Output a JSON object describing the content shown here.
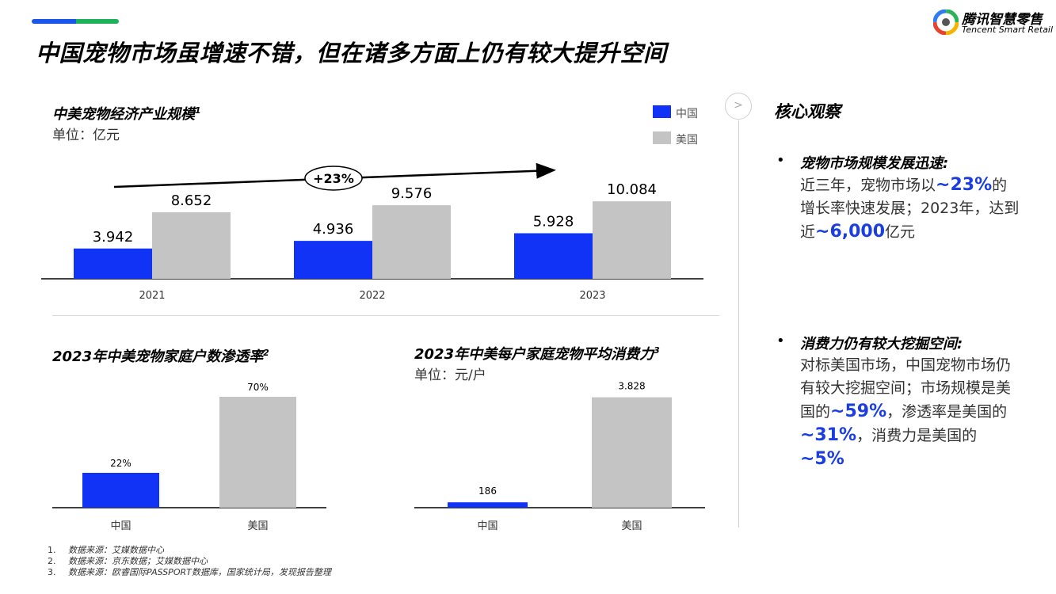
{
  "header": {
    "title": "中国宠物市场虽增速不错，但在诸多方面上仍有较大提升空间",
    "logo_cn": "腾讯智慧零售",
    "logo_en": "Tencent Smart Retail"
  },
  "colors": {
    "china": "#1133f5",
    "usa": "#c4c4c4",
    "highlight": "#1a3ee0"
  },
  "chart_data": [
    {
      "type": "bar",
      "title": "中美宠物经济产业规模",
      "title_sup": "1",
      "unit": "单位：亿元",
      "categories": [
        "2021",
        "2022",
        "2023"
      ],
      "series": [
        {
          "name": "中国",
          "values": [
            3.942,
            4.936,
            5.928
          ],
          "labels": [
            "3.942",
            "4.936",
            "5.928"
          ]
        },
        {
          "name": "美国",
          "values": [
            8.652,
            9.576,
            10.084
          ],
          "labels": [
            "8.652",
            "9.576",
            "10.084"
          ]
        }
      ],
      "annotation": "+23%",
      "legend": "top-right"
    },
    {
      "type": "bar",
      "title": "2023年中美宠物家庭户数渗透率",
      "title_sup": "2",
      "categories": [
        "中国",
        "美国"
      ],
      "values": [
        22,
        70
      ],
      "labels": [
        "22%",
        "70%"
      ]
    },
    {
      "type": "bar",
      "title": "2023年中美每户家庭宠物平均消费力",
      "title_sup": "3",
      "unit": "单位：元/户",
      "categories": [
        "中国",
        "美国"
      ],
      "values": [
        186,
        3828
      ],
      "labels": [
        "186",
        "3.828"
      ]
    }
  ],
  "insights": {
    "arrow_glyph": ">",
    "heading": "核心观察",
    "bullets": [
      {
        "title": "宠物市场规模发展迅速:",
        "parts": [
          "近三年，宠物市场以",
          "~23%",
          "的增长率快速发展；2023年，达到近",
          "~6,000",
          "亿元"
        ]
      },
      {
        "title": "消费力仍有较大挖掘空间:",
        "parts": [
          "对标美国市场，中国宠物市场仍有较大挖掘空间；市场规模是美国的",
          "~59%",
          "，渗透率是美国的",
          "~31%",
          "，消费力是美国的",
          "~5%"
        ]
      }
    ]
  },
  "footnotes": [
    {
      "num": "1.",
      "text": "数据来源：艾媒数据中心"
    },
    {
      "num": "2.",
      "text": "数据来源：京东数据；艾媒数据中心"
    },
    {
      "num": "3.",
      "text": "数据来源：欧睿国际PASSPORT数据库，国家统计局，发现报告整理"
    }
  ]
}
